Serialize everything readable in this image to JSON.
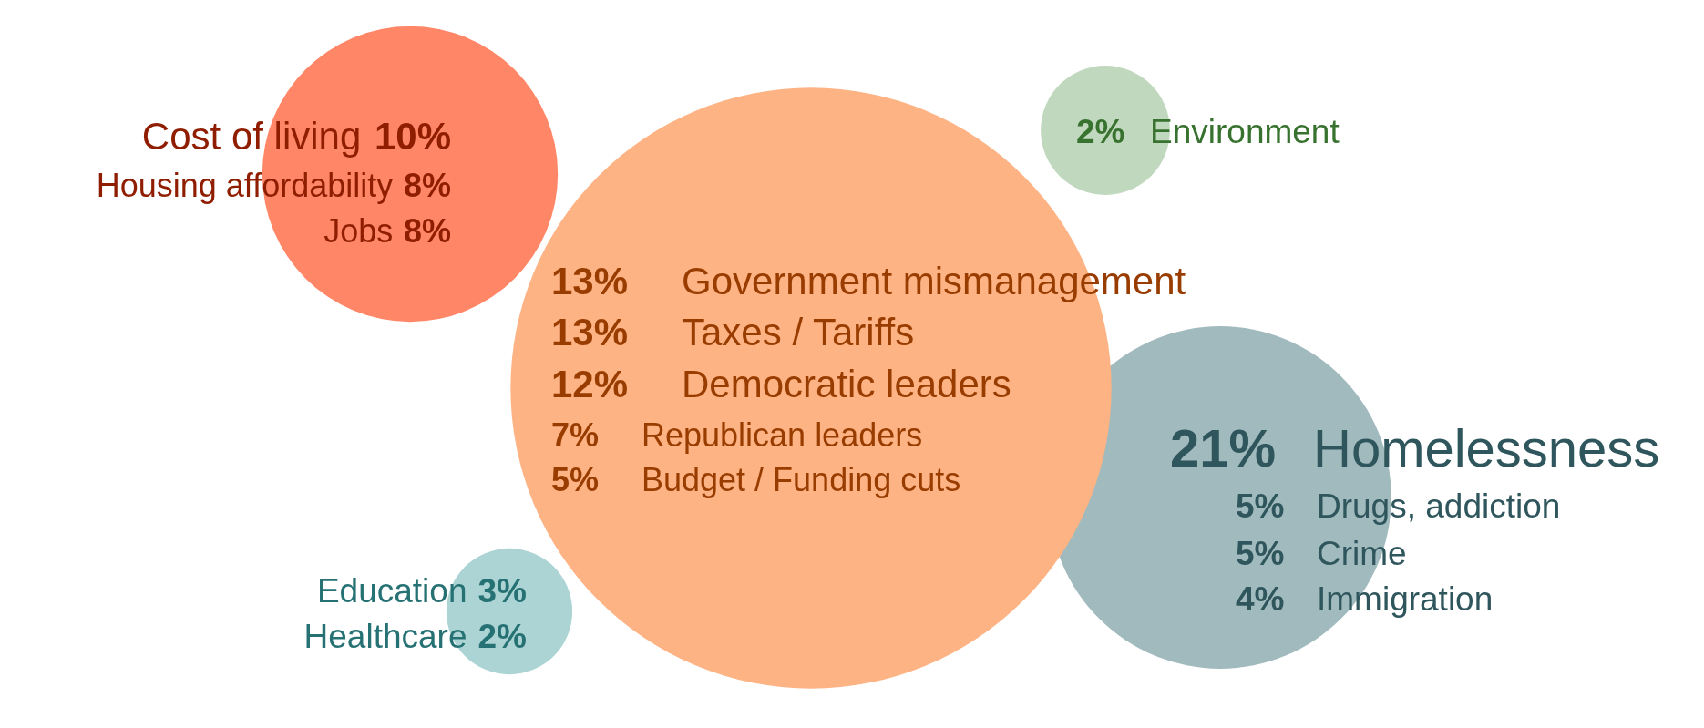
{
  "chart_data": {
    "type": "other",
    "categories": [
      "Cost of living",
      "Housing affordability",
      "Jobs",
      "Homelessness",
      "Drugs, addiction",
      "Crime",
      "Immigration",
      "Government mismanagement",
      "Taxes / Tariffs",
      "Democratic leaders",
      "Republican leaders",
      "Budget / Funding cuts",
      "Environment",
      "Education",
      "Healthcare"
    ],
    "series": [
      {
        "color": "#ff8667",
        "values": [
          10,
          8,
          8,
          null,
          null,
          null,
          null,
          null,
          null,
          null,
          null,
          null,
          null,
          null,
          null
        ],
        "value_labels": [
          "10%",
          "8%",
          "8%",
          null,
          null,
          null,
          null,
          null,
          null,
          null,
          null,
          null,
          null,
          null,
          null
        ]
      },
      {
        "color": "#a1babe",
        "values": [
          null,
          null,
          null,
          21,
          5,
          5,
          4,
          null,
          null,
          null,
          null,
          null,
          null,
          null,
          null
        ],
        "value_labels": [
          null,
          null,
          null,
          "21%",
          "5%",
          "5%",
          "4%",
          null,
          null,
          null,
          null,
          null,
          null,
          null,
          null
        ]
      },
      {
        "color": "#fdb383",
        "values": [
          null,
          null,
          null,
          null,
          null,
          null,
          null,
          13,
          13,
          12,
          7,
          5,
          null,
          null,
          null
        ],
        "value_labels": [
          null,
          null,
          null,
          null,
          null,
          null,
          null,
          "13%",
          "13%",
          "12%",
          "7%",
          "5%",
          null,
          null,
          null
        ]
      },
      {
        "color": "#c0d8bd",
        "values": [
          null,
          null,
          null,
          null,
          null,
          null,
          null,
          null,
          null,
          null,
          null,
          null,
          2,
          null,
          null
        ],
        "value_labels": [
          null,
          null,
          null,
          null,
          null,
          null,
          null,
          null,
          null,
          null,
          null,
          null,
          "2%",
          null,
          null
        ]
      },
      {
        "color": "#acd4d5",
        "values": [
          null,
          null,
          null,
          null,
          null,
          null,
          null,
          null,
          null,
          null,
          null,
          null,
          null,
          3,
          2
        ],
        "value_labels": [
          null,
          null,
          null,
          null,
          null,
          null,
          null,
          null,
          null,
          null,
          null,
          null,
          null,
          "3%",
          "2%"
        ]
      }
    ]
  }
}
